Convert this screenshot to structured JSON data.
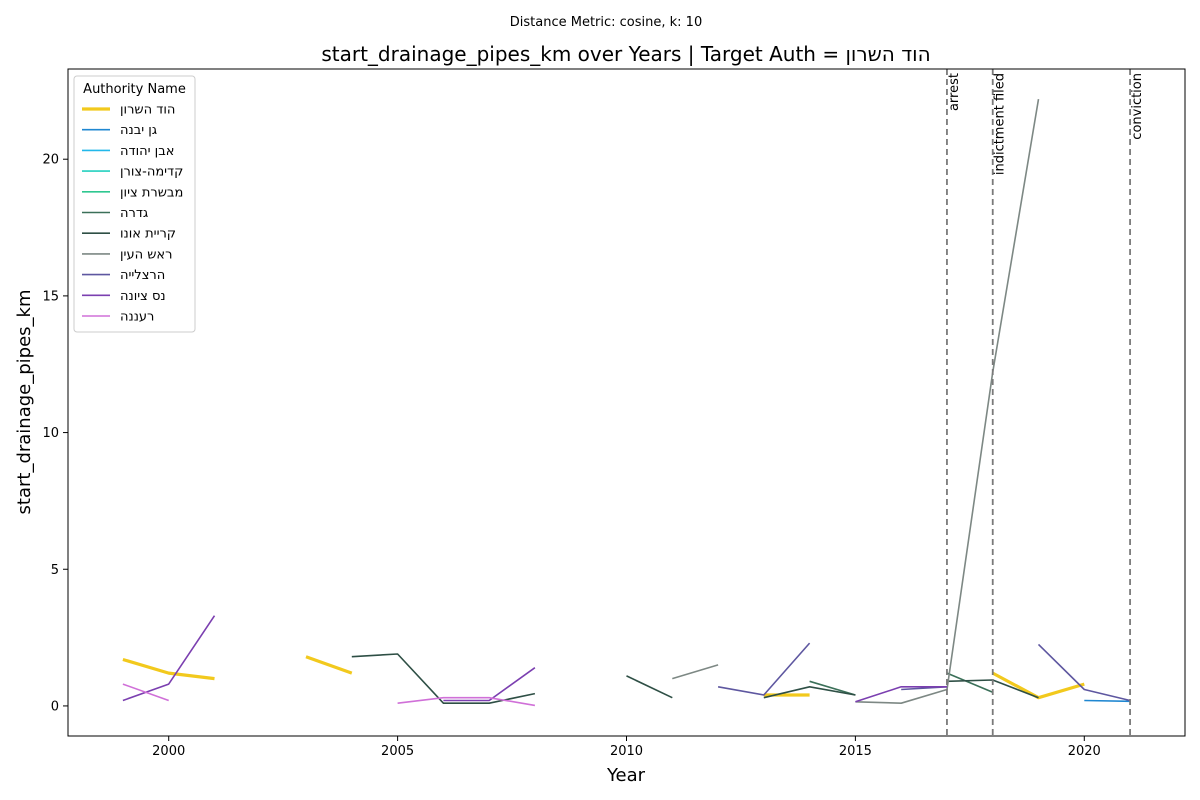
{
  "chart_data": {
    "type": "line",
    "suptitle": "Distance Metric: cosine, k: 10",
    "title": "start_drainage_pipes_km over Years | Target Auth = הוד השרון",
    "xlabel": "Year",
    "ylabel": "start_drainage_pipes_km",
    "xlim": [
      1997.8,
      2022.2
    ],
    "ylim": [
      -1.1,
      23.3
    ],
    "xticks": [
      2000,
      2005,
      2010,
      2015,
      2020
    ],
    "yticks": [
      0,
      5,
      10,
      15,
      20
    ],
    "grid": false,
    "legend": {
      "title": "Authority Name",
      "placement": "top-left"
    },
    "events": [
      {
        "label": "arrest",
        "x": 2017
      },
      {
        "label": "indictment filed",
        "x": 2018
      },
      {
        "label": "conviction",
        "x": 2021
      }
    ],
    "series": [
      {
        "name": "הוד השרון",
        "color": "#f2c91d",
        "width": 3.2,
        "segments": [
          [
            [
              1999,
              1.7
            ],
            [
              2000,
              1.2
            ],
            [
              2001,
              1.0
            ]
          ],
          [
            [
              2003,
              1.8
            ],
            [
              2004,
              1.2
            ]
          ],
          [
            [
              2013,
              0.4
            ],
            [
              2014,
              0.4
            ]
          ],
          [
            [
              2018,
              1.2
            ],
            [
              2019,
              0.3
            ],
            [
              2020,
              0.8
            ]
          ]
        ]
      },
      {
        "name": "גן יבנה",
        "color": "#1f87d1",
        "width": 1.6,
        "segments": [
          [
            [
              2020,
              0.2
            ],
            [
              2021,
              0.17
            ]
          ]
        ]
      },
      {
        "name": "אבן יהודה",
        "color": "#22b8ea",
        "width": 1.6,
        "segments": []
      },
      {
        "name": "קדימה-צורן",
        "color": "#25d1bf",
        "width": 1.6,
        "segments": []
      },
      {
        "name": "מבשרת ציון",
        "color": "#2fc790",
        "width": 1.6,
        "segments": []
      },
      {
        "name": "גדרה",
        "color": "#3b7059",
        "width": 1.6,
        "segments": [
          [
            [
              2014,
              0.9
            ],
            [
              2015,
              0.4
            ]
          ],
          [
            [
              2017,
              1.2
            ],
            [
              2018,
              0.5
            ]
          ]
        ]
      },
      {
        "name": "קריית אונו",
        "color": "#2e4f45",
        "width": 1.6,
        "segments": [
          [
            [
              2004,
              1.8
            ],
            [
              2005,
              1.9
            ],
            [
              2006,
              0.1
            ],
            [
              2007,
              0.1
            ],
            [
              2008,
              0.45
            ]
          ],
          [
            [
              2010,
              1.1
            ],
            [
              2011,
              0.3
            ]
          ],
          [
            [
              2013,
              0.3
            ],
            [
              2014,
              0.7
            ],
            [
              2015,
              0.4
            ]
          ],
          [
            [
              2017,
              0.9
            ],
            [
              2018,
              0.95
            ],
            [
              2019,
              0.3
            ]
          ]
        ]
      },
      {
        "name": "ראש העין",
        "color": "#7d8884",
        "width": 1.6,
        "segments": [
          [
            [
              2011,
              1.0
            ],
            [
              2012,
              1.5
            ]
          ],
          [
            [
              2015,
              0.15
            ],
            [
              2016,
              0.1
            ],
            [
              2017,
              0.6
            ]
          ],
          [
            [
              2017,
              0.6
            ],
            [
              2018,
              12.2
            ],
            [
              2019,
              22.2
            ]
          ]
        ]
      },
      {
        "name": "הרצלייה",
        "color": "#5e57a0",
        "width": 1.6,
        "segments": [
          [
            [
              2012,
              0.7
            ],
            [
              2013,
              0.4
            ],
            [
              2014,
              2.3
            ]
          ],
          [
            [
              2016,
              0.6
            ],
            [
              2017,
              0.7
            ]
          ],
          [
            [
              2019,
              2.25
            ],
            [
              2020,
              0.6
            ],
            [
              2021,
              0.2
            ]
          ]
        ]
      },
      {
        "name": "נס ציונה",
        "color": "#7b3fb0",
        "width": 1.6,
        "segments": [
          [
            [
              1999,
              0.2
            ],
            [
              2000,
              0.8
            ],
            [
              2001,
              3.3
            ]
          ],
          [
            [
              2006,
              0.2
            ],
            [
              2007,
              0.2
            ],
            [
              2008,
              1.4
            ]
          ],
          [
            [
              2015,
              0.15
            ],
            [
              2016,
              0.7
            ],
            [
              2017,
              0.7
            ]
          ]
        ]
      },
      {
        "name": "רעננה",
        "color": "#d070d8",
        "width": 1.6,
        "segments": [
          [
            [
              1999,
              0.8
            ],
            [
              2000,
              0.2
            ]
          ],
          [
            [
              2005,
              0.1
            ],
            [
              2006,
              0.3
            ],
            [
              2007,
              0.3
            ],
            [
              2008,
              0.02
            ]
          ]
        ]
      }
    ]
  }
}
